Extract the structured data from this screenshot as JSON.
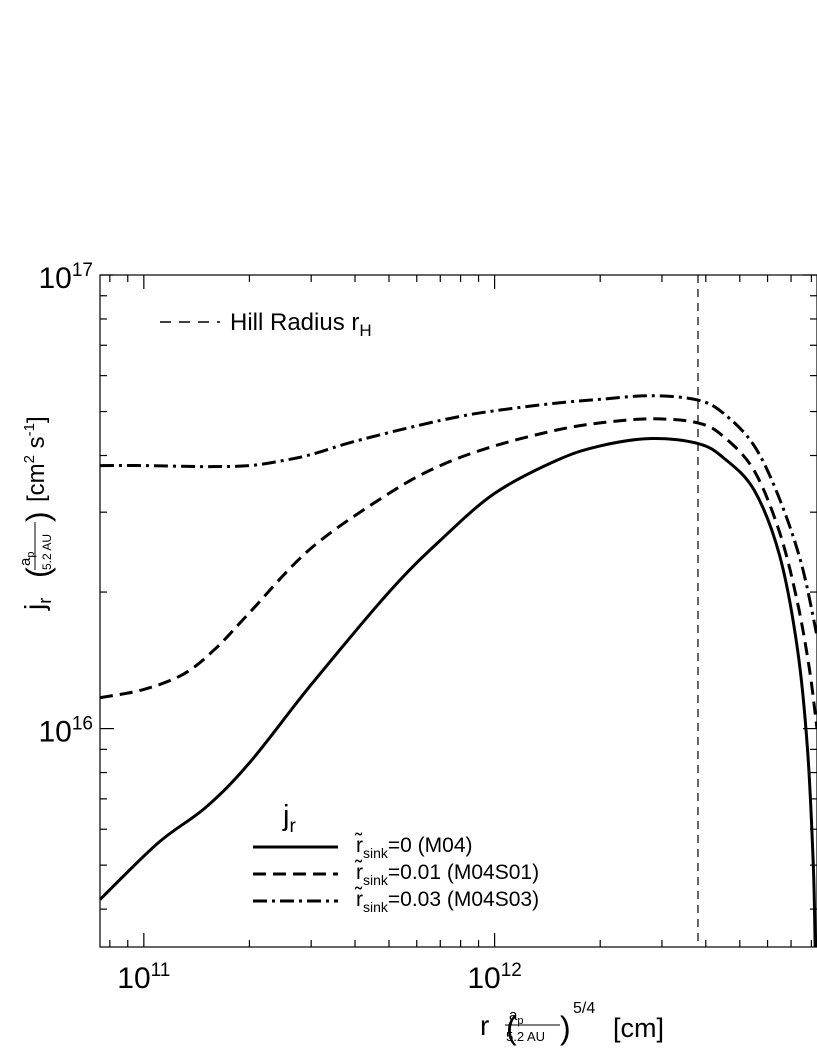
{
  "chart_data": {
    "type": "line",
    "x_scale": "log",
    "y_scale": "log",
    "xlim": [
      75000000000.0,
      8300000000000.0
    ],
    "ylim": [
      3300000000000000.0,
      1e+17
    ],
    "x_ticks": [
      {
        "value": 100000000000.0,
        "base": "10",
        "exp": "11"
      },
      {
        "value": 1000000000000.0,
        "base": "10",
        "exp": "12"
      }
    ],
    "y_ticks": [
      {
        "value": 1e+16,
        "base": "10",
        "exp": "16"
      },
      {
        "value": 1e+17,
        "base": "10",
        "exp": "17"
      }
    ],
    "xlabel": {
      "main": "r",
      "frac_num": "a",
      "frac_num_sub": "p",
      "frac_den": "5.2 AU",
      "power": "5/4",
      "unit": "[cm]"
    },
    "ylabel": {
      "main": "j",
      "main_sub": "r",
      "frac_num": "a",
      "frac_num_sub": "p",
      "frac_den": "5.2 AU",
      "unit_open": "[cm",
      "unit_pow1": "2",
      "unit_mid": " s",
      "unit_pow2": "-1",
      "unit_close": "]"
    },
    "hill_radius": {
      "x": 3800000000000.0,
      "label_main": "Hill Radius  r",
      "label_sub": "H"
    },
    "legend": {
      "title_main": "j",
      "title_sub": "r",
      "placement": "bottom-left"
    },
    "series": [
      {
        "name": "=0  (M04)",
        "label_main": "r̃",
        "label_sub": "sink",
        "label_rest": "=0  (M04)",
        "dash": "solid",
        "x": [
          75000000000.0,
          110000000000.0,
          150000000000.0,
          200000000000.0,
          300000000000.0,
          500000000000.0,
          700000000000.0,
          1000000000000.0,
          1500000000000.0,
          2000000000000.0,
          2800000000000.0,
          3800000000000.0,
          4500000000000.0,
          5500000000000.0,
          6500000000000.0,
          7300000000000.0,
          7800000000000.0,
          8100000000000.0,
          8200000000000.0
        ],
        "y": [
          4200000000000000.0,
          5600000000000000.0,
          6700000000000000.0,
          8400000000000000.0,
          1.25e+16,
          2e+16,
          2.6e+16,
          3.3e+16,
          3.9e+16,
          4.2e+16,
          4.36e+16,
          4.25e+16,
          3.95e+16,
          3.35e+16,
          2.4e+16,
          1.5e+16,
          9000000000000000.0,
          5000000000000000.0,
          3300000000000000.0
        ]
      },
      {
        "name": "=0.01  (M04S01)",
        "label_main": "r̃",
        "label_sub": "sink",
        "label_rest": "=0.01  (M04S01)",
        "dash": "dashed",
        "x": [
          75000000000.0,
          100000000000.0,
          130000000000.0,
          160000000000.0,
          200000000000.0,
          300000000000.0,
          500000000000.0,
          700000000000.0,
          1000000000000.0,
          1500000000000.0,
          2000000000000.0,
          2800000000000.0,
          3800000000000.0,
          4500000000000.0,
          5500000000000.0,
          6500000000000.0,
          7300000000000.0,
          7900000000000.0,
          8300000000000.0
        ],
        "y": [
          1.17e+16,
          1.22e+16,
          1.32e+16,
          1.5e+16,
          1.8e+16,
          2.5e+16,
          3.3e+16,
          3.8e+16,
          4.2e+16,
          4.55e+16,
          4.72e+16,
          4.82e+16,
          4.72e+16,
          4.4e+16,
          3.7e+16,
          2.7e+16,
          1.9e+16,
          1.35e+16,
          1e+16
        ]
      },
      {
        "name": "=0.03  (M04S03)",
        "label_main": "r̃",
        "label_sub": "sink",
        "label_rest": "=0.03  (M04S03)",
        "dash": "dashdot",
        "x": [
          75000000000.0,
          100000000000.0,
          150000000000.0,
          200000000000.0,
          250000000000.0,
          300000000000.0,
          400000000000.0,
          600000000000.0,
          800000000000.0,
          1000000000000.0,
          1500000000000.0,
          2000000000000.0,
          2800000000000.0,
          3800000000000.0,
          4500000000000.0,
          5500000000000.0,
          6500000000000.0,
          7500000000000.0,
          8300000000000.0
        ],
        "y": [
          3.8e+16,
          3.8e+16,
          3.78e+16,
          3.8e+16,
          3.9e+16,
          4.02e+16,
          4.3e+16,
          4.65e+16,
          4.88e+16,
          5.02e+16,
          5.22e+16,
          5.32e+16,
          5.42e+16,
          5.3e+16,
          4.95e+16,
          4.2e+16,
          3.2e+16,
          2.3e+16,
          1.6e+16
        ]
      }
    ]
  }
}
